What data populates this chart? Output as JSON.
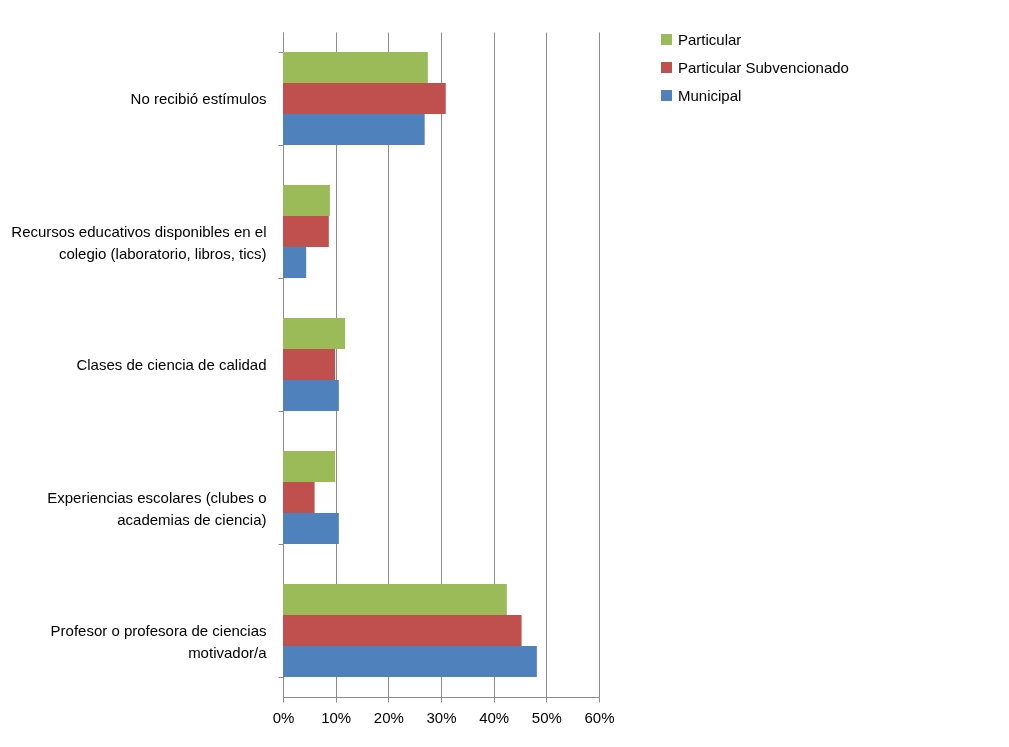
{
  "chart_data": {
    "type": "bar",
    "orientation": "horizontal",
    "categories": [
      "No recibió estímulos",
      "Recursos educativos disponibles en el colegio (laboratorio, libros, tics)",
      "Clases de ciencia de calidad",
      "Experiencias escolares (clubes o academias de ciencia)",
      "Profesor o profesora de ciencias motivador/a"
    ],
    "series": [
      {
        "name": "Particular",
        "color": "#9bbb59",
        "values": [
          27.5,
          8.9,
          11.8,
          9.9,
          42.5
        ]
      },
      {
        "name": "Particular Subvencionado",
        "color": "#c0504d",
        "values": [
          30.9,
          8.7,
          9.9,
          6.0,
          45.3
        ]
      },
      {
        "name": "Municipal",
        "color": "#4f81bd",
        "values": [
          26.9,
          4.4,
          10.6,
          10.6,
          48.2
        ]
      }
    ],
    "xlim": [
      0,
      60
    ],
    "xticks": [
      {
        "value": 0,
        "label": "0%"
      },
      {
        "value": 10,
        "label": "10%"
      },
      {
        "value": 20,
        "label": "20%"
      },
      {
        "value": 30,
        "label": "30%"
      },
      {
        "value": 40,
        "label": "40%"
      },
      {
        "value": 50,
        "label": "50%"
      },
      {
        "value": 60,
        "label": "60%"
      }
    ],
    "grid": "x",
    "legend": "right"
  }
}
